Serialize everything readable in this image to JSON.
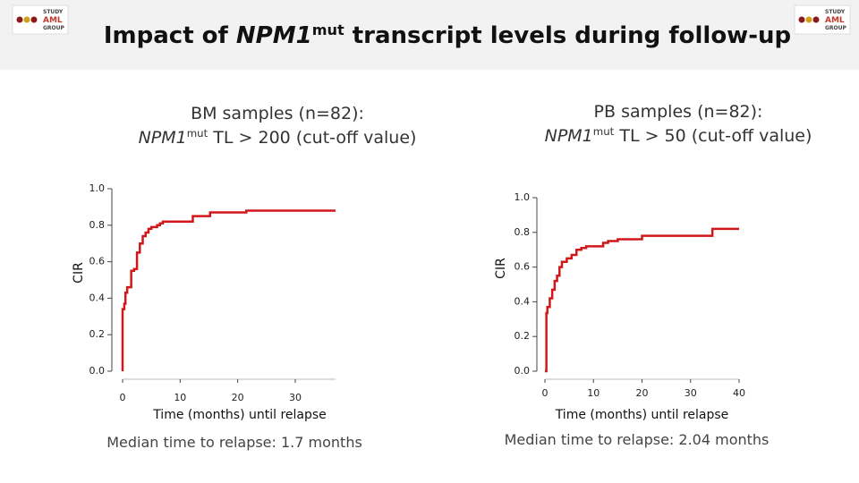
{
  "header": {
    "title_parts": [
      "Impact of ",
      "NPM1",
      "mut",
      " transcript levels during follow-up"
    ],
    "logo": [
      "STUDY",
      "AML",
      "GROUP"
    ]
  },
  "chart_data": [
    {
      "type": "line",
      "step": true,
      "title": "BM samples (n=82):",
      "subtitle_parts": [
        "NPM1",
        "mut",
        " TL > 200 (cut-off value)"
      ],
      "xlabel": "Time (months) until relapse",
      "ylabel": "CIR",
      "annotation": "Median time to relapse:  1.7 months",
      "color": "#d0181b",
      "x": [
        0,
        0,
        0.3,
        0.5,
        0.8,
        1.5,
        2,
        2.5,
        3,
        3.5,
        4,
        4.5,
        5,
        6,
        6.5,
        7,
        12.2,
        15.2,
        21.5,
        37
      ],
      "values": [
        0,
        0.34,
        0.37,
        0.43,
        0.46,
        0.55,
        0.56,
        0.65,
        0.7,
        0.74,
        0.76,
        0.78,
        0.79,
        0.8,
        0.81,
        0.82,
        0.85,
        0.87,
        0.88,
        0.88
      ],
      "xlim": [
        0,
        37
      ],
      "xticks": [
        0,
        10,
        20,
        30
      ],
      "ylim": [
        0,
        1
      ],
      "yticks": [
        {
          "value": 0,
          "label": "0.0"
        },
        0.2,
        0.4,
        0.6,
        0.8,
        {
          "value": 1,
          "label": "1.0"
        }
      ]
    },
    {
      "type": "line",
      "step": true,
      "title": "PB samples (n=82):",
      "subtitle_parts": [
        "NPM1",
        "mut",
        " TL > 50 (cut-off value)"
      ],
      "xlabel": "Time (months) until relapse",
      "ylabel": "CIR",
      "annotation": "Median time to relapse:  2.04 months",
      "color": "#d0181b",
      "x": [
        0,
        0.3,
        0.5,
        1,
        1.5,
        2,
        2.5,
        3,
        3.5,
        4.5,
        5.5,
        6.5,
        7.5,
        8.5,
        12,
        13,
        15,
        20,
        34.5,
        40
      ],
      "values": [
        0,
        0.335,
        0.37,
        0.42,
        0.47,
        0.52,
        0.55,
        0.6,
        0.63,
        0.65,
        0.67,
        0.7,
        0.71,
        0.72,
        0.74,
        0.75,
        0.76,
        0.78,
        0.82,
        0.82
      ],
      "xlim": [
        0,
        40
      ],
      "xticks": [
        0,
        10,
        20,
        30,
        40
      ],
      "ylim": [
        0,
        1
      ],
      "yticks": [
        {
          "value": 0,
          "label": "0.0"
        },
        0.2,
        0.4,
        0.6,
        0.8,
        {
          "value": 1,
          "label": "1.0"
        }
      ]
    }
  ]
}
